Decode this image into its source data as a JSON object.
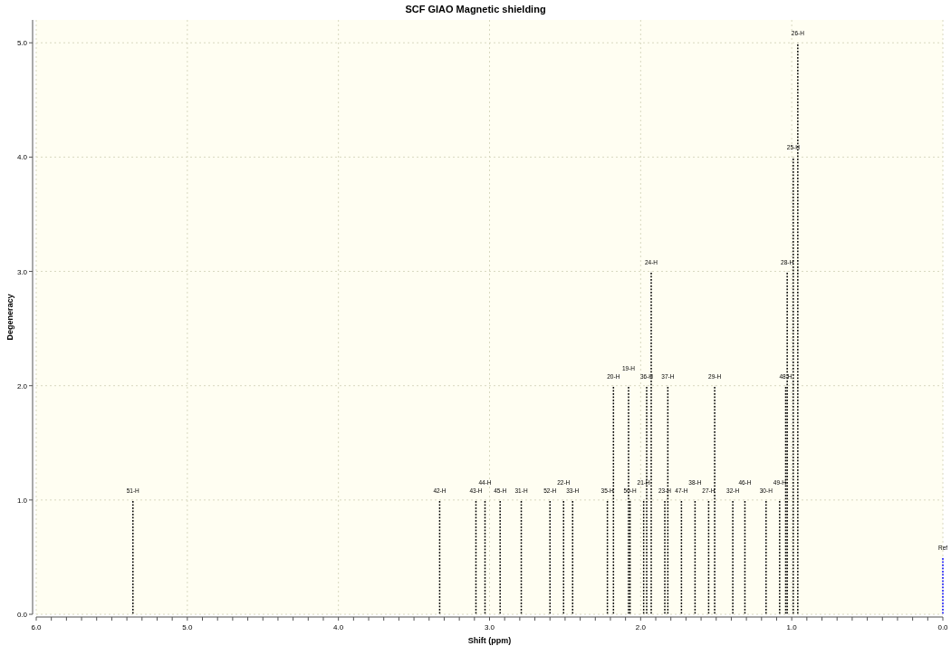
{
  "chart_data": {
    "type": "bar",
    "title": "SCF GIAO Magnetic shielding",
    "xlabel": "Shift (ppm)",
    "ylabel": "Degeneracy",
    "xlim": [
      6.0,
      0.0
    ],
    "ylim": [
      0,
      5.2
    ],
    "xticks": [
      {
        "value": 6,
        "label": "6.0"
      },
      {
        "value": 5.9,
        "label": null
      },
      {
        "value": 5.8,
        "label": null
      },
      {
        "value": 5.7,
        "label": null
      },
      {
        "value": 5.6,
        "label": null
      },
      {
        "value": 5.5,
        "label": null
      },
      {
        "value": 5.4,
        "label": null
      },
      {
        "value": 5.3,
        "label": null
      },
      {
        "value": 5.2,
        "label": null
      },
      {
        "value": 5.1,
        "label": null
      },
      {
        "value": 5,
        "label": "5.0"
      },
      {
        "value": 4.9,
        "label": null
      },
      {
        "value": 4.8,
        "label": null
      },
      {
        "value": 4.7,
        "label": null
      },
      {
        "value": 4.6,
        "label": null
      },
      {
        "value": 4.5,
        "label": null
      },
      {
        "value": 4.4,
        "label": null
      },
      {
        "value": 4.3,
        "label": null
      },
      {
        "value": 4.2,
        "label": null
      },
      {
        "value": 4.1,
        "label": null
      },
      {
        "value": 4,
        "label": "4.0"
      },
      {
        "value": 3.9,
        "label": null
      },
      {
        "value": 3.8,
        "label": null
      },
      {
        "value": 3.7,
        "label": null
      },
      {
        "value": 3.6,
        "label": null
      },
      {
        "value": 3.5,
        "label": null
      },
      {
        "value": 3.4,
        "label": null
      },
      {
        "value": 3.3,
        "label": null
      },
      {
        "value": 3.2,
        "label": null
      },
      {
        "value": 3.1,
        "label": null
      },
      {
        "value": 3,
        "label": "3.0"
      },
      {
        "value": 2.9,
        "label": null
      },
      {
        "value": 2.8,
        "label": null
      },
      {
        "value": 2.7,
        "label": null
      },
      {
        "value": 2.6,
        "label": null
      },
      {
        "value": 2.5,
        "label": null
      },
      {
        "value": 2.4,
        "label": null
      },
      {
        "value": 2.3,
        "label": null
      },
      {
        "value": 2.2,
        "label": null
      },
      {
        "value": 2.1,
        "label": null
      },
      {
        "value": 2,
        "label": "2.0"
      },
      {
        "value": 1.9,
        "label": null
      },
      {
        "value": 1.8,
        "label": null
      },
      {
        "value": 1.7,
        "label": null
      },
      {
        "value": 1.6,
        "label": null
      },
      {
        "value": 1.5,
        "label": null
      },
      {
        "value": 1.4,
        "label": null
      },
      {
        "value": 1.3,
        "label": null
      },
      {
        "value": 1.2,
        "label": null
      },
      {
        "value": 1.1,
        "label": null
      },
      {
        "value": 1,
        "label": "1.0"
      },
      {
        "value": 0.9,
        "label": null
      },
      {
        "value": 0.8,
        "label": null
      },
      {
        "value": 0.7,
        "label": null
      },
      {
        "value": 0.6,
        "label": null
      },
      {
        "value": 0.5,
        "label": null
      },
      {
        "value": 0.4,
        "label": null
      },
      {
        "value": 0.3,
        "label": null
      },
      {
        "value": 0.2,
        "label": null
      },
      {
        "value": 0.1,
        "label": null
      },
      {
        "value": 0,
        "label": "0.0"
      }
    ],
    "yticks": [
      {
        "value": 0,
        "label": "0.0"
      },
      {
        "value": 1,
        "label": "1.0"
      },
      {
        "value": 2,
        "label": "2.0"
      },
      {
        "value": 3,
        "label": "3.0"
      },
      {
        "value": 4,
        "label": "4.0"
      },
      {
        "value": 5,
        "label": "5.0"
      }
    ],
    "grid": true,
    "line_style": "dotted",
    "series": [
      {
        "color": "#000000",
        "x": [
          5.36,
          3.33,
          3.09,
          3.03,
          2.93,
          2.79,
          2.6,
          2.51,
          2.45,
          2.22,
          2.18,
          2.08,
          2.07,
          1.98,
          1.96,
          1.93,
          1.84,
          1.82,
          1.73,
          1.64,
          1.55,
          1.51,
          1.39,
          1.31,
          1.17,
          1.08,
          1.04,
          1.03,
          0.99,
          0.96
        ],
        "values": [
          1,
          1,
          1,
          1,
          1,
          1,
          1,
          1,
          1,
          1,
          2,
          2,
          1,
          1,
          2,
          3,
          1,
          2,
          1,
          1,
          1,
          2,
          1,
          1,
          1,
          1,
          2,
          3,
          4,
          5
        ]
      },
      {
        "color": "#0000ff",
        "x": [
          0
        ],
        "values": [
          0.5
        ]
      }
    ],
    "annotations": [
      {
        "text": "51-H",
        "x": 5.36,
        "y": 1
      },
      {
        "text": "42-H",
        "x": 3.33,
        "y": 1
      },
      {
        "text": "43-H",
        "x": 3.09,
        "y": 1
      },
      {
        "text": "44-H",
        "x": 3.03,
        "y": 1
      },
      {
        "text": "45-H",
        "x": 2.93,
        "y": 1
      },
      {
        "text": "31-H",
        "x": 2.79,
        "y": 1
      },
      {
        "text": "52-H",
        "x": 2.6,
        "y": 1
      },
      {
        "text": "22-H",
        "x": 2.51,
        "y": 1
      },
      {
        "text": "33-H",
        "x": 2.45,
        "y": 1
      },
      {
        "text": "35-H",
        "x": 2.22,
        "y": 1
      },
      {
        "text": "20-H",
        "x": 2.18,
        "y": 2
      },
      {
        "text": "19-H",
        "x": 2.08,
        "y": 2
      },
      {
        "text": "50-H",
        "x": 2.07,
        "y": 1
      },
      {
        "text": "21-H",
        "x": 1.98,
        "y": 1
      },
      {
        "text": "36-H",
        "x": 1.96,
        "y": 2
      },
      {
        "text": "24-H",
        "x": 1.93,
        "y": 3
      },
      {
        "text": "23-H",
        "x": 1.84,
        "y": 1
      },
      {
        "text": "37-H",
        "x": 1.82,
        "y": 2
      },
      {
        "text": "47-H",
        "x": 1.73,
        "y": 1
      },
      {
        "text": "38-H",
        "x": 1.64,
        "y": 1
      },
      {
        "text": "27-H",
        "x": 1.55,
        "y": 1
      },
      {
        "text": "29-H",
        "x": 1.51,
        "y": 2
      },
      {
        "text": "32-H",
        "x": 1.39,
        "y": 1
      },
      {
        "text": "46-H",
        "x": 1.31,
        "y": 1
      },
      {
        "text": "30-H",
        "x": 1.17,
        "y": 1
      },
      {
        "text": "49-H",
        "x": 1.08,
        "y": 1
      },
      {
        "text": "48-H",
        "x": 1.04,
        "y": 2
      },
      {
        "text": "28-H",
        "x": 1.03,
        "y": 3
      },
      {
        "text": "25-H",
        "x": 0.99,
        "y": 4
      },
      {
        "text": "26-H",
        "x": 0.96,
        "y": 5
      },
      {
        "text": "Ref",
        "x": 0,
        "y": 0.5
      }
    ]
  }
}
